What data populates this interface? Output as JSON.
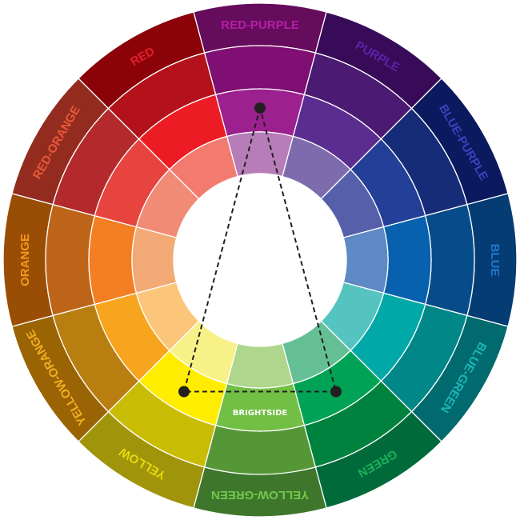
{
  "brand_label": "BRIGHTSIDE",
  "segments": [
    {
      "name": "RED-PURPLE",
      "label_color": "#B51FA8",
      "colors": [
        "#650C5C",
        "#7F0F72",
        "#9D208F",
        "#B77DB8"
      ]
    },
    {
      "name": "PURPLE",
      "label_color": "#5C22A8",
      "colors": [
        "#380B59",
        "#4B1A73",
        "#5C2D91",
        "#7D6BAE"
      ]
    },
    {
      "name": "BLUE-PURPLE",
      "label_color": "#3A43C0",
      "colors": [
        "#0B1A5E",
        "#172C78",
        "#233F98",
        "#5660AA"
      ]
    },
    {
      "name": "BLUE",
      "label_color": "#2078D0",
      "colors": [
        "#043C73",
        "#064C8A",
        "#0761AE",
        "#5D89C5"
      ]
    },
    {
      "name": "BLUE-GREEN",
      "label_color": "#1CB6B6",
      "colors": [
        "#006A6E",
        "#008788",
        "#00A9A8",
        "#55C3C0"
      ]
    },
    {
      "name": "GREEN",
      "label_color": "#1DB05A",
      "colors": [
        "#006A3B",
        "#00823F",
        "#00A355",
        "#65BF96"
      ]
    },
    {
      "name": "YELLOW-GREEN",
      "label_color": "#74C84C",
      "colors": [
        "#3E772C",
        "#559736",
        "#71BF44",
        "#AED68C"
      ]
    },
    {
      "name": "YELLOW",
      "label_color": "#E8DA0C",
      "colors": [
        "#A0940A",
        "#C9BC05",
        "#FFED00",
        "#F7F188"
      ]
    },
    {
      "name": "YELLOW-ORANGE",
      "label_color": "#F2AE22",
      "colors": [
        "#9A6405",
        "#B97E10",
        "#F7A51E",
        "#FCC67A"
      ]
    },
    {
      "name": "ORANGE",
      "label_color": "#F29A1E",
      "colors": [
        "#9A4E05",
        "#BE6418",
        "#F37F22",
        "#F3A975"
      ]
    },
    {
      "name": "RED-ORANGE",
      "label_color": "#E8583A",
      "colors": [
        "#932C1E",
        "#B42A2C",
        "#E7433F",
        "#F28B75"
      ]
    },
    {
      "name": "RED",
      "label_color": "#E3202A",
      "colors": [
        "#8B0309",
        "#B4121B",
        "#ED1C24",
        "#F27A6E"
      ]
    }
  ],
  "triad": {
    "vertices": [
      "RED-PURPLE",
      "YELLOW",
      "GREEN"
    ],
    "line_color": "#231F20",
    "line_style": "dashed"
  }
}
